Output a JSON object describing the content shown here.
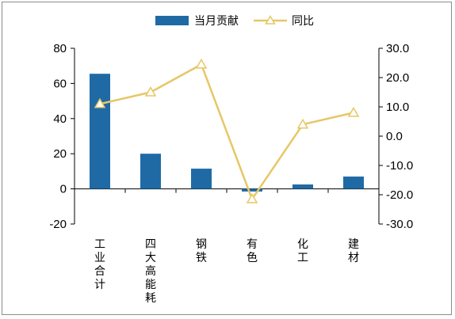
{
  "chart_data": {
    "type": "bar+line",
    "title": "",
    "categories": [
      "工业合计",
      "四大高能耗",
      "钢铁",
      "有色",
      "化工",
      "建材"
    ],
    "series": [
      {
        "name": "当月贡献",
        "type": "bar",
        "axis": "left",
        "color": "#1f6aa5",
        "values": [
          65.5,
          20.0,
          11.5,
          -1.5,
          2.5,
          7.0
        ]
      },
      {
        "name": "同比",
        "type": "line",
        "axis": "right",
        "color": "#e6c766",
        "marker": "triangle-open",
        "values": [
          11.0,
          15.0,
          24.5,
          -21.5,
          4.0,
          8.0
        ]
      }
    ],
    "left_axis": {
      "min": -20,
      "max": 80,
      "ticks": [
        "-20",
        "0",
        "20",
        "40",
        "60",
        "80"
      ]
    },
    "right_axis": {
      "min": -30,
      "max": 30,
      "ticks": [
        "-30.0",
        "-20.0",
        "-10.0",
        "0.0",
        "10.0",
        "20.0",
        "30.0"
      ]
    },
    "legend_position": "top-center",
    "grid": false
  }
}
